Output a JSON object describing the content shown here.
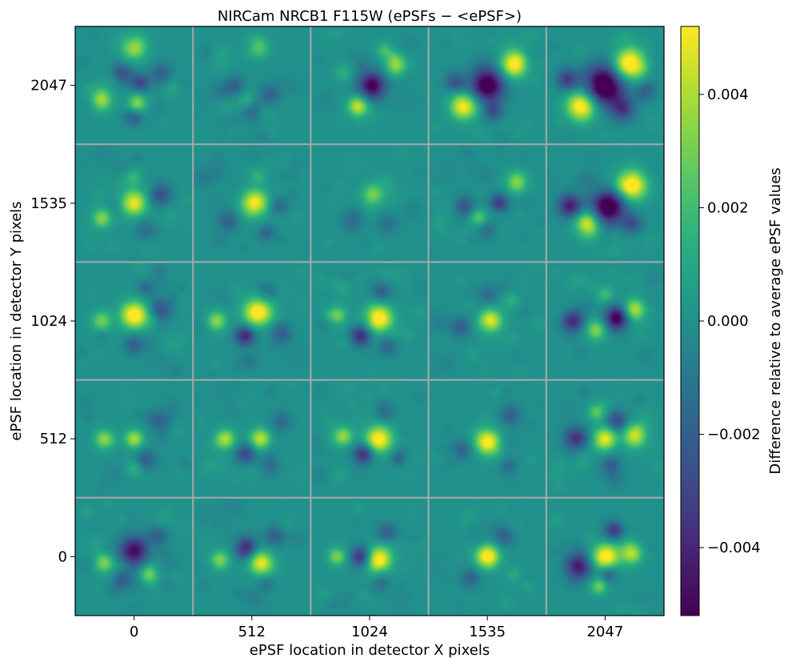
{
  "chart_data": {
    "type": "heatmap",
    "title": "NIRCam NRCB1 F115W (ePSFs − <ePSF>)",
    "xlabel": "ePSF location in detector X pixels",
    "ylabel": "ePSF location in detector Y pixels",
    "x_ticks": [
      "0",
      "512",
      "1024",
      "1535",
      "2047"
    ],
    "y_ticks": [
      "2047",
      "1535",
      "1024",
      "512",
      "0"
    ],
    "colorbar": {
      "label": "Difference relative to average ePSF values",
      "range": [
        -0.0052,
        0.0052
      ],
      "ticks": [
        {
          "value": 0.004,
          "label": "0.004"
        },
        {
          "value": 0.002,
          "label": "0.002"
        },
        {
          "value": 0.0,
          "label": "0.000"
        },
        {
          "value": -0.002,
          "label": "−0.002"
        },
        {
          "value": -0.004,
          "label": "−0.004"
        }
      ],
      "colormap": "viridis"
    },
    "grid": true,
    "background_value": 0.0,
    "panels_note": "5x5 grid of residual ePSF images; rows top->bottom = Y 2047,1535,1024,512,0; cols left->right = X 0,512,1024,1535,2047",
    "features": [
      {
        "row": 0,
        "col": 0,
        "blobs": [
          [
            0,
            -0.65,
            0.004,
            0.15
          ],
          [
            -0.55,
            0.25,
            0.0035,
            0.13
          ],
          [
            0.05,
            0.3,
            0.0035,
            0.11
          ],
          [
            0.1,
            -0.05,
            -0.003,
            0.11
          ],
          [
            -0.2,
            -0.2,
            -0.0025,
            0.12
          ],
          [
            0.45,
            -0.2,
            -0.002,
            0.12
          ],
          [
            0.0,
            0.55,
            -0.002,
            0.1
          ]
        ]
      },
      {
        "row": 0,
        "col": 1,
        "blobs": [
          [
            0.1,
            -0.65,
            0.0028,
            0.13
          ],
          [
            -0.3,
            0.0,
            -0.002,
            0.12
          ],
          [
            0.3,
            0.15,
            -0.0018,
            0.12
          ],
          [
            0.0,
            0.45,
            -0.0015,
            0.12
          ],
          [
            -0.1,
            0.25,
            0.0015,
            0.1
          ]
        ]
      },
      {
        "row": 0,
        "col": 2,
        "blobs": [
          [
            0.05,
            0.0,
            -0.0055,
            0.16
          ],
          [
            -0.2,
            0.35,
            0.0045,
            0.12
          ],
          [
            0.45,
            -0.35,
            0.0035,
            0.13
          ],
          [
            0.25,
            -0.6,
            0.002,
            0.1
          ],
          [
            -0.45,
            -0.2,
            0.0015,
            0.1
          ]
        ]
      },
      {
        "row": 0,
        "col": 3,
        "blobs": [
          [
            0.0,
            0.0,
            -0.006,
            0.2
          ],
          [
            0.45,
            -0.35,
            0.0055,
            0.16
          ],
          [
            -0.4,
            0.35,
            0.0055,
            0.16
          ],
          [
            -0.55,
            -0.05,
            -0.0025,
            0.12
          ],
          [
            0.1,
            0.45,
            -0.002,
            0.12
          ]
        ]
      },
      {
        "row": 0,
        "col": 4,
        "blobs": [
          [
            0.0,
            0.0,
            -0.007,
            0.24
          ],
          [
            0.4,
            -0.35,
            0.0065,
            0.2
          ],
          [
            -0.4,
            0.35,
            0.006,
            0.18
          ],
          [
            -0.65,
            -0.1,
            -0.0035,
            0.13
          ],
          [
            0.3,
            0.4,
            -0.003,
            0.14
          ],
          [
            0.7,
            0.1,
            -0.0025,
            0.12
          ]
        ]
      },
      {
        "row": 1,
        "col": 0,
        "blobs": [
          [
            0.0,
            0.0,
            0.005,
            0.15
          ],
          [
            -0.55,
            0.25,
            0.003,
            0.12
          ],
          [
            0.45,
            -0.15,
            -0.0025,
            0.13
          ],
          [
            0.0,
            -0.45,
            0.0015,
            0.1
          ],
          [
            0.2,
            0.45,
            -0.0015,
            0.12
          ]
        ]
      },
      {
        "row": 1,
        "col": 1,
        "blobs": [
          [
            0.05,
            0.0,
            0.0055,
            0.16
          ],
          [
            -0.4,
            0.3,
            -0.002,
            0.12
          ],
          [
            0.45,
            0.05,
            -0.0018,
            0.12
          ],
          [
            0.1,
            -0.45,
            0.0018,
            0.1
          ],
          [
            0.25,
            0.5,
            -0.0015,
            0.1
          ]
        ]
      },
      {
        "row": 1,
        "col": 2,
        "blobs": [
          [
            0.05,
            -0.15,
            0.003,
            0.13
          ],
          [
            -0.3,
            0.3,
            -0.0015,
            0.12
          ],
          [
            0.3,
            0.35,
            -0.0012,
            0.12
          ]
        ]
      },
      {
        "row": 1,
        "col": 3,
        "blobs": [
          [
            0.5,
            -0.35,
            0.0035,
            0.13
          ],
          [
            0.2,
            0.0,
            -0.0035,
            0.11
          ],
          [
            -0.15,
            0.25,
            0.0025,
            0.1
          ],
          [
            -0.4,
            0.05,
            -0.0025,
            0.12
          ],
          [
            0.0,
            0.45,
            -0.0015,
            0.12
          ]
        ]
      },
      {
        "row": 1,
        "col": 4,
        "blobs": [
          [
            0.05,
            0.05,
            -0.0065,
            0.2
          ],
          [
            0.45,
            -0.3,
            0.006,
            0.18
          ],
          [
            -0.3,
            0.35,
            0.005,
            0.15
          ],
          [
            -0.6,
            0.05,
            -0.004,
            0.14
          ],
          [
            0.45,
            0.35,
            -0.0025,
            0.12
          ]
        ]
      },
      {
        "row": 2,
        "col": 0,
        "blobs": [
          [
            0.0,
            -0.1,
            0.006,
            0.16
          ],
          [
            -0.55,
            0.0,
            0.003,
            0.12
          ],
          [
            0.45,
            -0.2,
            -0.0025,
            0.13
          ],
          [
            0.0,
            0.4,
            -0.002,
            0.12
          ],
          [
            0.2,
            -0.55,
            -0.0015,
            0.1
          ]
        ]
      },
      {
        "row": 2,
        "col": 1,
        "blobs": [
          [
            0.1,
            -0.15,
            0.006,
            0.17
          ],
          [
            -0.1,
            0.25,
            -0.004,
            0.12
          ],
          [
            -0.6,
            0.0,
            0.0035,
            0.12
          ],
          [
            0.5,
            0.2,
            -0.002,
            0.12
          ],
          [
            0.3,
            -0.5,
            -0.0015,
            0.11
          ]
        ]
      },
      {
        "row": 2,
        "col": 2,
        "blobs": [
          [
            0.15,
            -0.05,
            0.006,
            0.16
          ],
          [
            -0.15,
            0.25,
            -0.004,
            0.12
          ],
          [
            -0.55,
            -0.1,
            0.003,
            0.11
          ],
          [
            0.2,
            -0.5,
            -0.002,
            0.12
          ],
          [
            0.3,
            0.45,
            -0.0015,
            0.11
          ]
        ]
      },
      {
        "row": 2,
        "col": 3,
        "blobs": [
          [
            0.05,
            0.0,
            0.005,
            0.14
          ],
          [
            -0.45,
            0.1,
            -0.002,
            0.12
          ],
          [
            0.4,
            -0.35,
            0.0015,
            0.1
          ],
          [
            0.0,
            -0.45,
            -0.0015,
            0.11
          ]
        ]
      },
      {
        "row": 2,
        "col": 4,
        "blobs": [
          [
            0.2,
            -0.05,
            -0.0055,
            0.14
          ],
          [
            -0.55,
            0.0,
            -0.004,
            0.13
          ],
          [
            0.5,
            -0.2,
            0.004,
            0.13
          ],
          [
            -0.15,
            0.15,
            0.0035,
            0.12
          ],
          [
            0.0,
            -0.45,
            0.002,
            0.1
          ]
        ]
      },
      {
        "row": 3,
        "col": 0,
        "blobs": [
          [
            0.0,
            0.0,
            0.004,
            0.11
          ],
          [
            -0.5,
            0.0,
            0.0035,
            0.12
          ],
          [
            0.4,
            -0.3,
            -0.002,
            0.13
          ],
          [
            0.2,
            0.35,
            -0.002,
            0.12
          ],
          [
            0.0,
            0.5,
            0.0015,
            0.1
          ]
        ]
      },
      {
        "row": 3,
        "col": 1,
        "blobs": [
          [
            0.15,
            0.0,
            0.0045,
            0.13
          ],
          [
            -0.45,
            0.0,
            0.004,
            0.12
          ],
          [
            -0.1,
            0.25,
            -0.003,
            0.12
          ],
          [
            0.5,
            -0.3,
            -0.0015,
            0.12
          ],
          [
            0.3,
            0.45,
            -0.0015,
            0.11
          ]
        ]
      },
      {
        "row": 3,
        "col": 2,
        "blobs": [
          [
            0.15,
            0.0,
            0.006,
            0.16
          ],
          [
            -0.45,
            -0.05,
            0.0035,
            0.12
          ],
          [
            -0.1,
            0.25,
            -0.004,
            0.12
          ],
          [
            0.25,
            -0.45,
            -0.0015,
            0.11
          ],
          [
            0.5,
            0.3,
            -0.0015,
            0.11
          ]
        ]
      },
      {
        "row": 3,
        "col": 3,
        "blobs": [
          [
            0.0,
            0.05,
            0.0055,
            0.15
          ],
          [
            0.4,
            -0.4,
            -0.002,
            0.12
          ],
          [
            -0.45,
            0.2,
            -0.0018,
            0.12
          ],
          [
            0.35,
            0.45,
            -0.0015,
            0.1
          ]
        ]
      },
      {
        "row": 3,
        "col": 4,
        "blobs": [
          [
            0.0,
            0.0,
            0.005,
            0.14
          ],
          [
            0.5,
            -0.05,
            0.0045,
            0.14
          ],
          [
            -0.5,
            0.0,
            -0.004,
            0.14
          ],
          [
            0.2,
            -0.3,
            -0.003,
            0.12
          ],
          [
            -0.15,
            -0.45,
            0.0025,
            0.1
          ],
          [
            0.1,
            0.45,
            -0.002,
            0.12
          ]
        ]
      },
      {
        "row": 4,
        "col": 0,
        "blobs": [
          [
            0.0,
            -0.1,
            -0.005,
            0.17
          ],
          [
            -0.5,
            0.1,
            0.0035,
            0.12
          ],
          [
            0.25,
            0.3,
            0.003,
            0.11
          ],
          [
            0.4,
            -0.35,
            -0.002,
            0.12
          ],
          [
            -0.2,
            0.4,
            -0.002,
            0.11
          ]
        ]
      },
      {
        "row": 4,
        "col": 1,
        "blobs": [
          [
            0.15,
            0.1,
            0.005,
            0.14
          ],
          [
            -0.1,
            -0.15,
            -0.004,
            0.13
          ],
          [
            -0.55,
            0.05,
            0.0035,
            0.12
          ],
          [
            0.4,
            -0.35,
            -0.002,
            0.12
          ],
          [
            0.25,
            0.45,
            -0.0015,
            0.11
          ]
        ]
      },
      {
        "row": 4,
        "col": 2,
        "blobs": [
          [
            0.15,
            0.05,
            0.006,
            0.15
          ],
          [
            -0.15,
            0.0,
            -0.004,
            0.12
          ],
          [
            -0.55,
            0.0,
            0.003,
            0.11
          ],
          [
            0.3,
            -0.4,
            -0.002,
            0.12
          ],
          [
            0.2,
            0.45,
            -0.0015,
            0.11
          ]
        ]
      },
      {
        "row": 4,
        "col": 3,
        "blobs": [
          [
            0.0,
            0.0,
            0.006,
            0.14
          ],
          [
            0.3,
            -0.35,
            -0.002,
            0.12
          ],
          [
            -0.3,
            0.35,
            -0.002,
            0.12
          ],
          [
            0.45,
            0.3,
            0.0012,
            0.09
          ]
        ]
      },
      {
        "row": 4,
        "col": 4,
        "blobs": [
          [
            0.0,
            0.0,
            0.0055,
            0.15
          ],
          [
            0.45,
            -0.05,
            0.004,
            0.13
          ],
          [
            -0.45,
            0.15,
            -0.0045,
            0.15
          ],
          [
            0.15,
            -0.45,
            -0.0035,
            0.11
          ],
          [
            -0.1,
            0.5,
            0.003,
            0.1
          ],
          [
            0.05,
            0.3,
            -0.002,
            0.1
          ]
        ]
      }
    ]
  }
}
